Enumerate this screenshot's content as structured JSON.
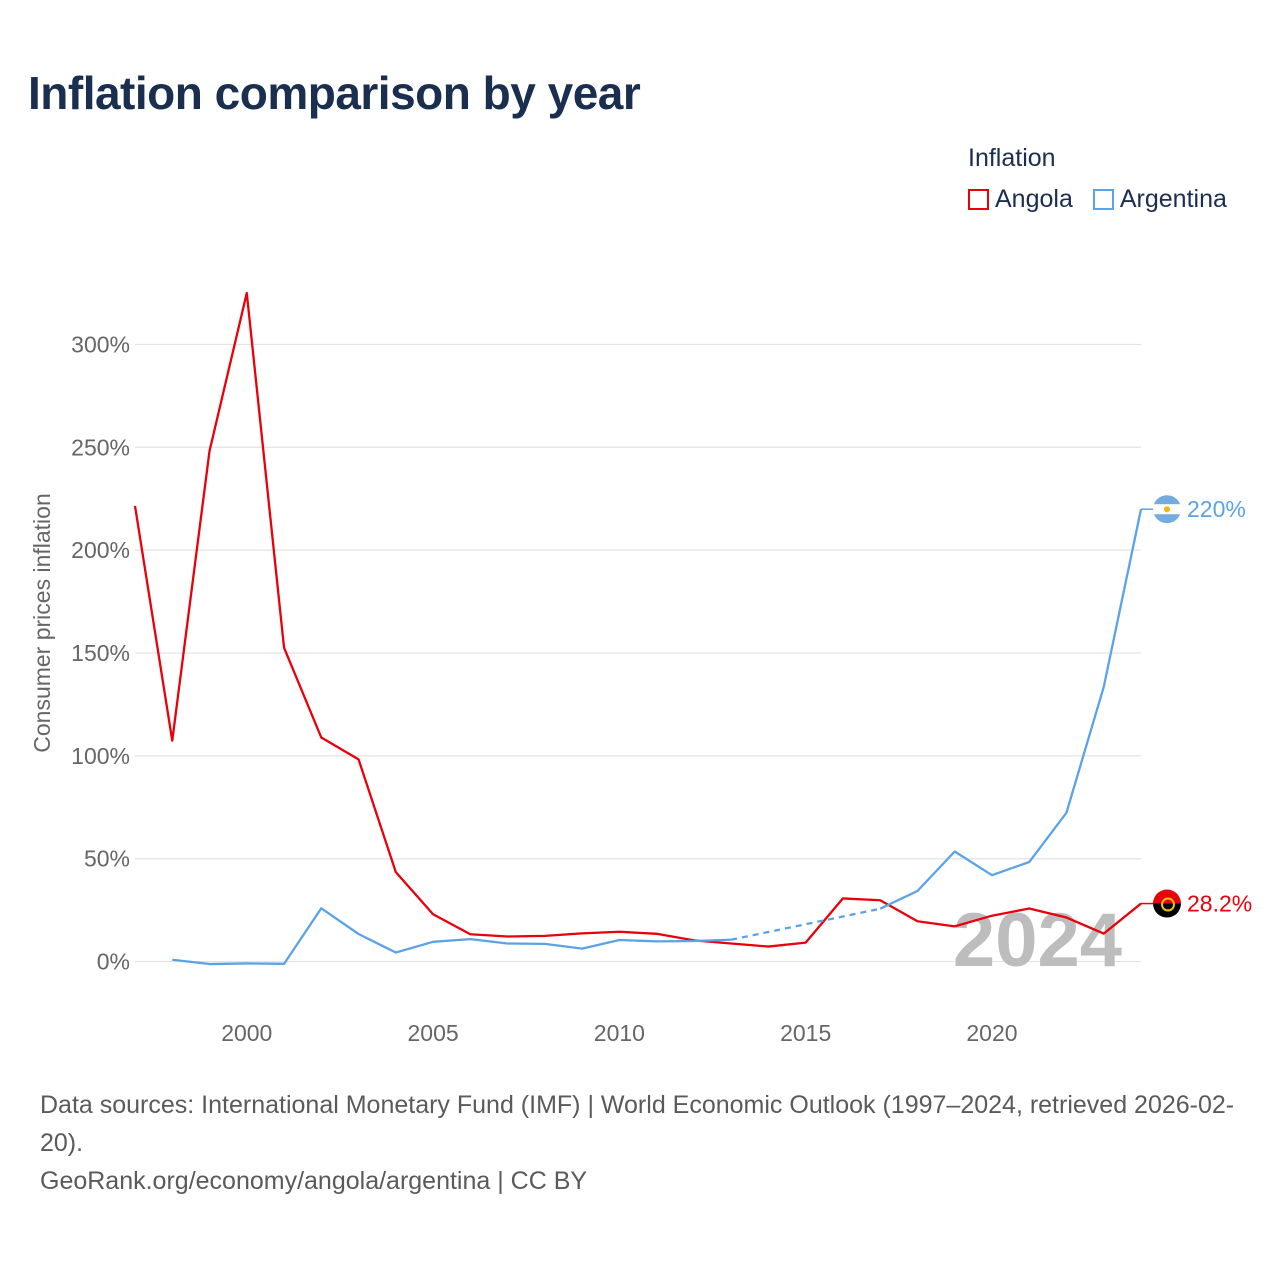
{
  "title": "Inflation comparison by year",
  "legend": {
    "title": "Inflation",
    "items": [
      {
        "label": "Angola",
        "color": "#e8000b"
      },
      {
        "label": "Argentina",
        "color": "#5ba3e6"
      }
    ]
  },
  "footer": {
    "source": "Data sources: International Monetary Fund (IMF) | World Economic Outlook (1997–2024, retrieved 2026-02-20).",
    "credit": "GeoRank.org/economy/angola/argentina | CC BY"
  },
  "chart_data": {
    "type": "line",
    "title": "Inflation comparison by year",
    "xlabel": "",
    "ylabel": "Consumer prices inflation",
    "xlim": [
      1997,
      2024
    ],
    "ylim": [
      -25,
      325
    ],
    "x_ticks": [
      2000,
      2005,
      2010,
      2015,
      2020
    ],
    "y_ticks": [
      0,
      50,
      100,
      150,
      200,
      250,
      300
    ],
    "y_tick_labels": [
      "0%",
      "50%",
      "100%",
      "150%",
      "200%",
      "250%",
      "300%"
    ],
    "grid": true,
    "year_label": "2024",
    "series": [
      {
        "name": "Angola",
        "color": "#e8000b",
        "end_label": "28.2%",
        "points": [
          [
            1997,
            221.5
          ],
          [
            1998,
            107.4
          ],
          [
            1999,
            248.2
          ],
          [
            2000,
            325.0
          ],
          [
            2001,
            152.6
          ],
          [
            2002,
            108.9
          ],
          [
            2003,
            98.3
          ],
          [
            2004,
            43.5
          ],
          [
            2005,
            23.0
          ],
          [
            2006,
            13.3
          ],
          [
            2007,
            12.2
          ],
          [
            2008,
            12.5
          ],
          [
            2009,
            13.7
          ],
          [
            2010,
            14.5
          ],
          [
            2011,
            13.5
          ],
          [
            2012,
            10.3
          ],
          [
            2013,
            8.8
          ],
          [
            2014,
            7.3
          ],
          [
            2015,
            9.2
          ],
          [
            2016,
            30.7
          ],
          [
            2017,
            29.8
          ],
          [
            2018,
            19.6
          ],
          [
            2019,
            17.1
          ],
          [
            2020,
            22.3
          ],
          [
            2021,
            25.8
          ],
          [
            2022,
            21.4
          ],
          [
            2023,
            13.6
          ],
          [
            2024,
            28.2
          ]
        ]
      },
      {
        "name": "Argentina",
        "color": "#5ba3e6",
        "end_label": "220%",
        "points": [
          [
            1998,
            0.9
          ],
          [
            1999,
            -1.2
          ],
          [
            2000,
            -0.9
          ],
          [
            2001,
            -1.1
          ],
          [
            2002,
            25.9
          ],
          [
            2003,
            13.4
          ],
          [
            2004,
            4.4
          ],
          [
            2005,
            9.6
          ],
          [
            2006,
            10.9
          ],
          [
            2007,
            8.8
          ],
          [
            2008,
            8.6
          ],
          [
            2009,
            6.3
          ],
          [
            2010,
            10.5
          ],
          [
            2011,
            9.8
          ],
          [
            2012,
            10.0
          ],
          [
            2013,
            10.6
          ],
          [
            2017,
            25.7
          ],
          [
            2018,
            34.3
          ],
          [
            2019,
            53.5
          ],
          [
            2020,
            42.0
          ],
          [
            2021,
            48.4
          ],
          [
            2022,
            72.4
          ],
          [
            2023,
            133.5
          ],
          [
            2024,
            219.9
          ]
        ],
        "estimated_segment": [
          2013,
          2017
        ]
      }
    ]
  }
}
